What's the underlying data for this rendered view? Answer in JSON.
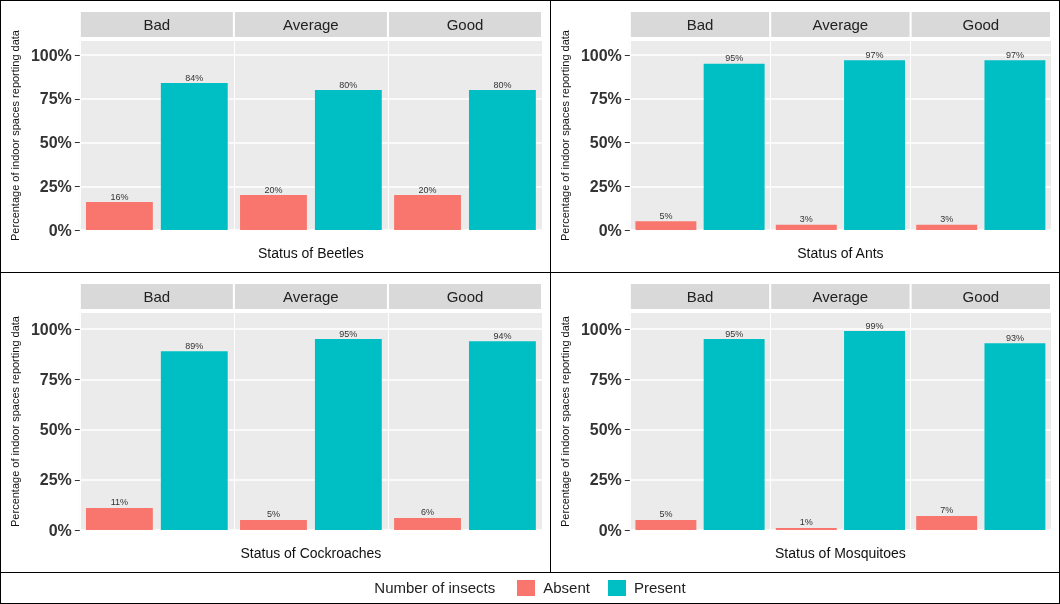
{
  "chart_data": [
    {
      "type": "bar",
      "xlabel": "Status of Beetles",
      "ylabel": "Percentage of indoor spaces reporting data",
      "categories": [
        "Bad",
        "Average",
        "Good"
      ],
      "ylim": [
        0,
        108
      ],
      "yticks": [
        {
          "value": 0,
          "label": "0%"
        },
        {
          "value": 25,
          "label": "25%"
        },
        {
          "value": 50,
          "label": "50%"
        },
        {
          "value": 75,
          "label": "75%"
        },
        {
          "value": 100,
          "label": "100%"
        }
      ],
      "grid": true,
      "legend": "bottom",
      "legend_title": "Number of insects",
      "series": [
        {
          "name": "Absent",
          "color": "#f8766d",
          "values": [
            16,
            20,
            20
          ],
          "value_labels": [
            "16%",
            "20%",
            "20%"
          ]
        },
        {
          "name": "Present",
          "color": "#00bfc4",
          "values": [
            84,
            80,
            80
          ],
          "value_labels": [
            "84%",
            "80%",
            "80%"
          ]
        }
      ]
    },
    {
      "type": "bar",
      "xlabel": "Status of Ants",
      "ylabel": "Percentage of indoor spaces reporting data",
      "categories": [
        "Bad",
        "Average",
        "Good"
      ],
      "ylim": [
        0,
        108
      ],
      "yticks": [
        {
          "value": 0,
          "label": "0%"
        },
        {
          "value": 25,
          "label": "25%"
        },
        {
          "value": 50,
          "label": "50%"
        },
        {
          "value": 75,
          "label": "75%"
        },
        {
          "value": 100,
          "label": "100%"
        }
      ],
      "grid": true,
      "series": [
        {
          "color": "#f8766d",
          "values": [
            5,
            3,
            3
          ],
          "value_labels": [
            "5%",
            "3%",
            "3%"
          ]
        },
        {
          "color": "#00bfc4",
          "values": [
            95,
            97,
            97
          ],
          "value_labels": [
            "95%",
            "97%",
            "97%"
          ]
        }
      ]
    },
    {
      "type": "bar",
      "xlabel": "Status of Cockroaches",
      "ylabel": "Percentage of indoor spaces reporting data",
      "categories": [
        "Bad",
        "Average",
        "Good"
      ],
      "ylim": [
        0,
        108
      ],
      "yticks": [
        {
          "value": 0,
          "label": "0%"
        },
        {
          "value": 25,
          "label": "25%"
        },
        {
          "value": 50,
          "label": "50%"
        },
        {
          "value": 75,
          "label": "75%"
        },
        {
          "value": 100,
          "label": "100%"
        }
      ],
      "grid": true,
      "series": [
        {
          "color": "#f8766d",
          "values": [
            11,
            5,
            6
          ],
          "value_labels": [
            "11%",
            "5%",
            "6%"
          ]
        },
        {
          "color": "#00bfc4",
          "values": [
            89,
            95,
            94
          ],
          "value_labels": [
            "89%",
            "95%",
            "94%"
          ]
        }
      ]
    },
    {
      "type": "bar",
      "xlabel": "Status of Mosquitoes",
      "ylabel": "Percentage of indoor spaces reporting data",
      "categories": [
        "Bad",
        "Average",
        "Good"
      ],
      "ylim": [
        0,
        108
      ],
      "yticks": [
        {
          "value": 0,
          "label": "0%"
        },
        {
          "value": 25,
          "label": "25%"
        },
        {
          "value": 50,
          "label": "50%"
        },
        {
          "value": 75,
          "label": "75%"
        },
        {
          "value": 100,
          "label": "100%"
        }
      ],
      "grid": true,
      "series": [
        {
          "color": "#f8766d",
          "values": [
            5,
            1,
            7
          ],
          "value_labels": [
            "5%",
            "1%",
            "7%"
          ]
        },
        {
          "color": "#00bfc4",
          "values": [
            95,
            99,
            93
          ],
          "value_labels": [
            "95%",
            "99%",
            "93%"
          ]
        }
      ]
    }
  ]
}
